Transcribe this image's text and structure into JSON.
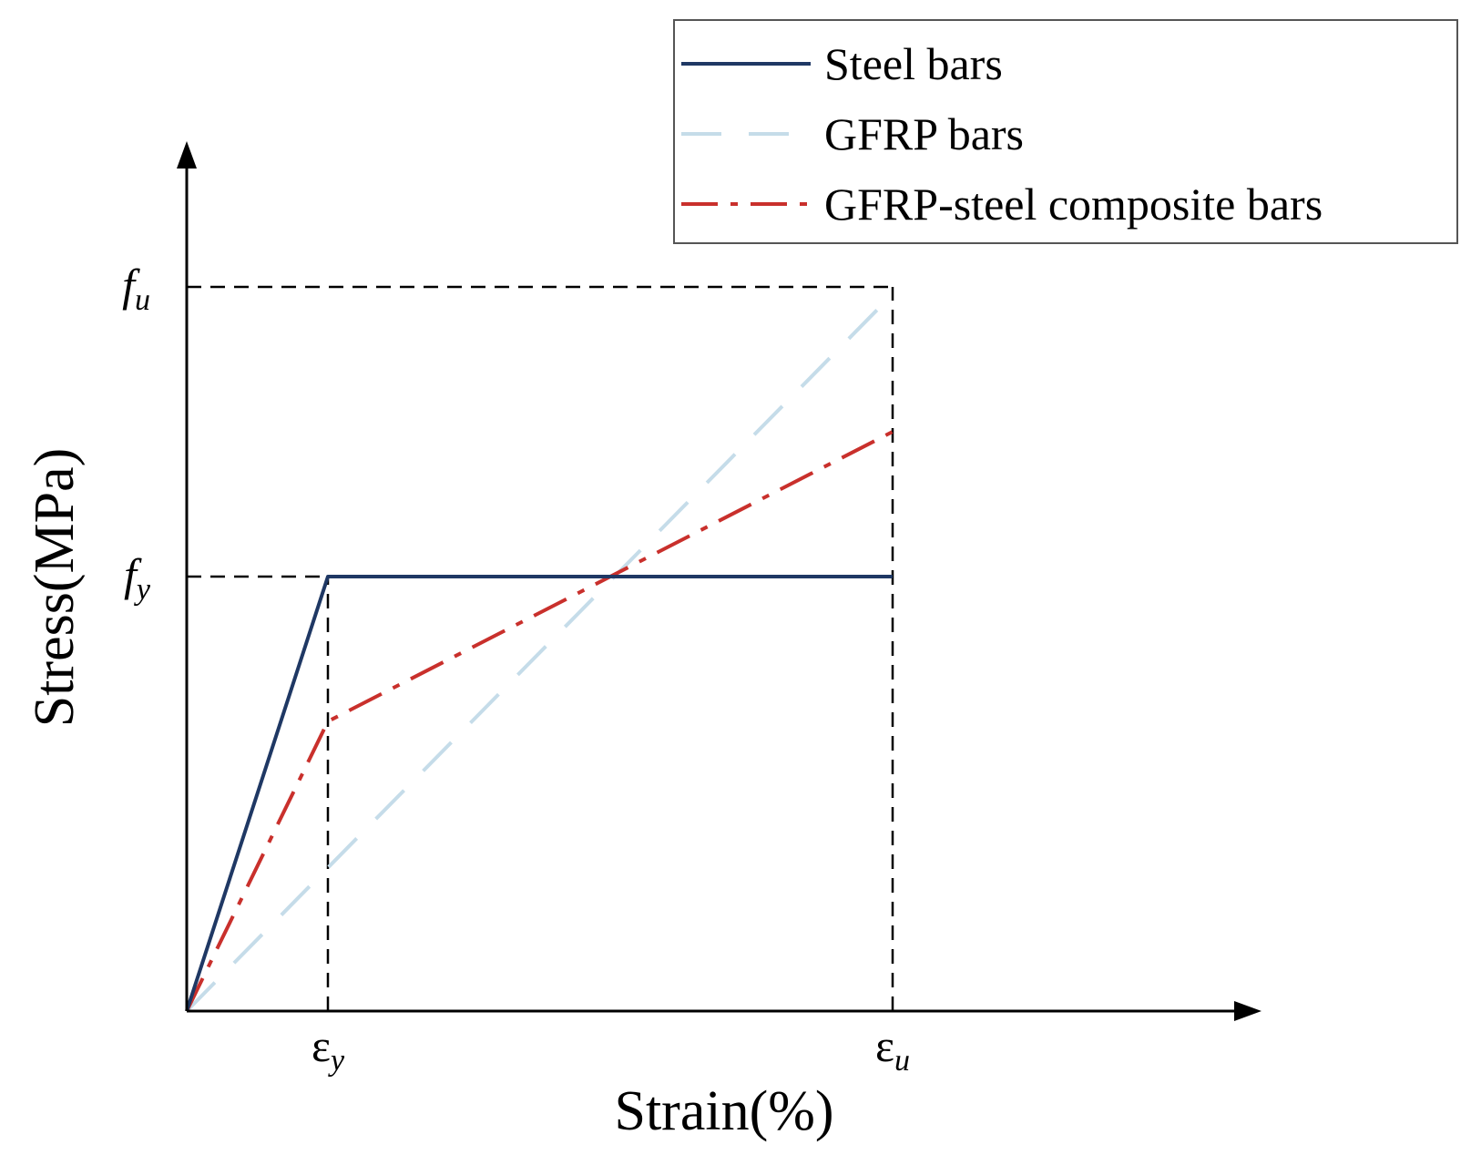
{
  "chart_data": {
    "type": "line",
    "title": "",
    "xlabel": "Strain(%)",
    "ylabel": "Stress(MPa)",
    "xlim": [
      0,
      1.2
    ],
    "ylim": [
      0,
      1.0
    ],
    "grid": false,
    "legend_position": "top-right",
    "colors": {
      "axis": "#000000",
      "reference": "#000000",
      "steel": "#1f3864",
      "gfrp": "#c5dce9",
      "composite": "#c9302c",
      "legend_border": "#555555"
    },
    "x_ticks": [
      {
        "base": "ε",
        "sub": "y",
        "value": 0.2
      },
      {
        "base": "ε",
        "sub": "u",
        "value": 1.0
      }
    ],
    "y_ticks": [
      {
        "base": "f",
        "sub": "y",
        "value": 0.6
      },
      {
        "base": "f",
        "sub": "u",
        "value": 1.0
      }
    ],
    "series": [
      {
        "name": "Steel bars",
        "style": "solid",
        "x": [
          0,
          0.2,
          1.0
        ],
        "y": [
          0,
          0.6,
          0.6
        ]
      },
      {
        "name": "GFRP bars",
        "style": "dashed",
        "x": [
          0,
          1.0
        ],
        "y": [
          0,
          0.99
        ]
      },
      {
        "name": "GFRP-steel composite bars",
        "style": "dashdot",
        "x": [
          0,
          0.2,
          1.0
        ],
        "y": [
          0,
          0.4,
          0.8
        ]
      }
    ],
    "reference_lines": [
      {
        "label": "fu-horizontal",
        "from": [
          0,
          1.0
        ],
        "to": [
          1.0,
          1.0
        ]
      },
      {
        "label": "eu-vertical",
        "from": [
          1.0,
          0
        ],
        "to": [
          1.0,
          1.0
        ]
      },
      {
        "label": "fy-horizontal",
        "from": [
          0,
          0.6
        ],
        "to": [
          0.2,
          0.6
        ]
      },
      {
        "label": "ey-vertical",
        "from": [
          0.2,
          0
        ],
        "to": [
          0.2,
          0.6
        ]
      }
    ]
  }
}
